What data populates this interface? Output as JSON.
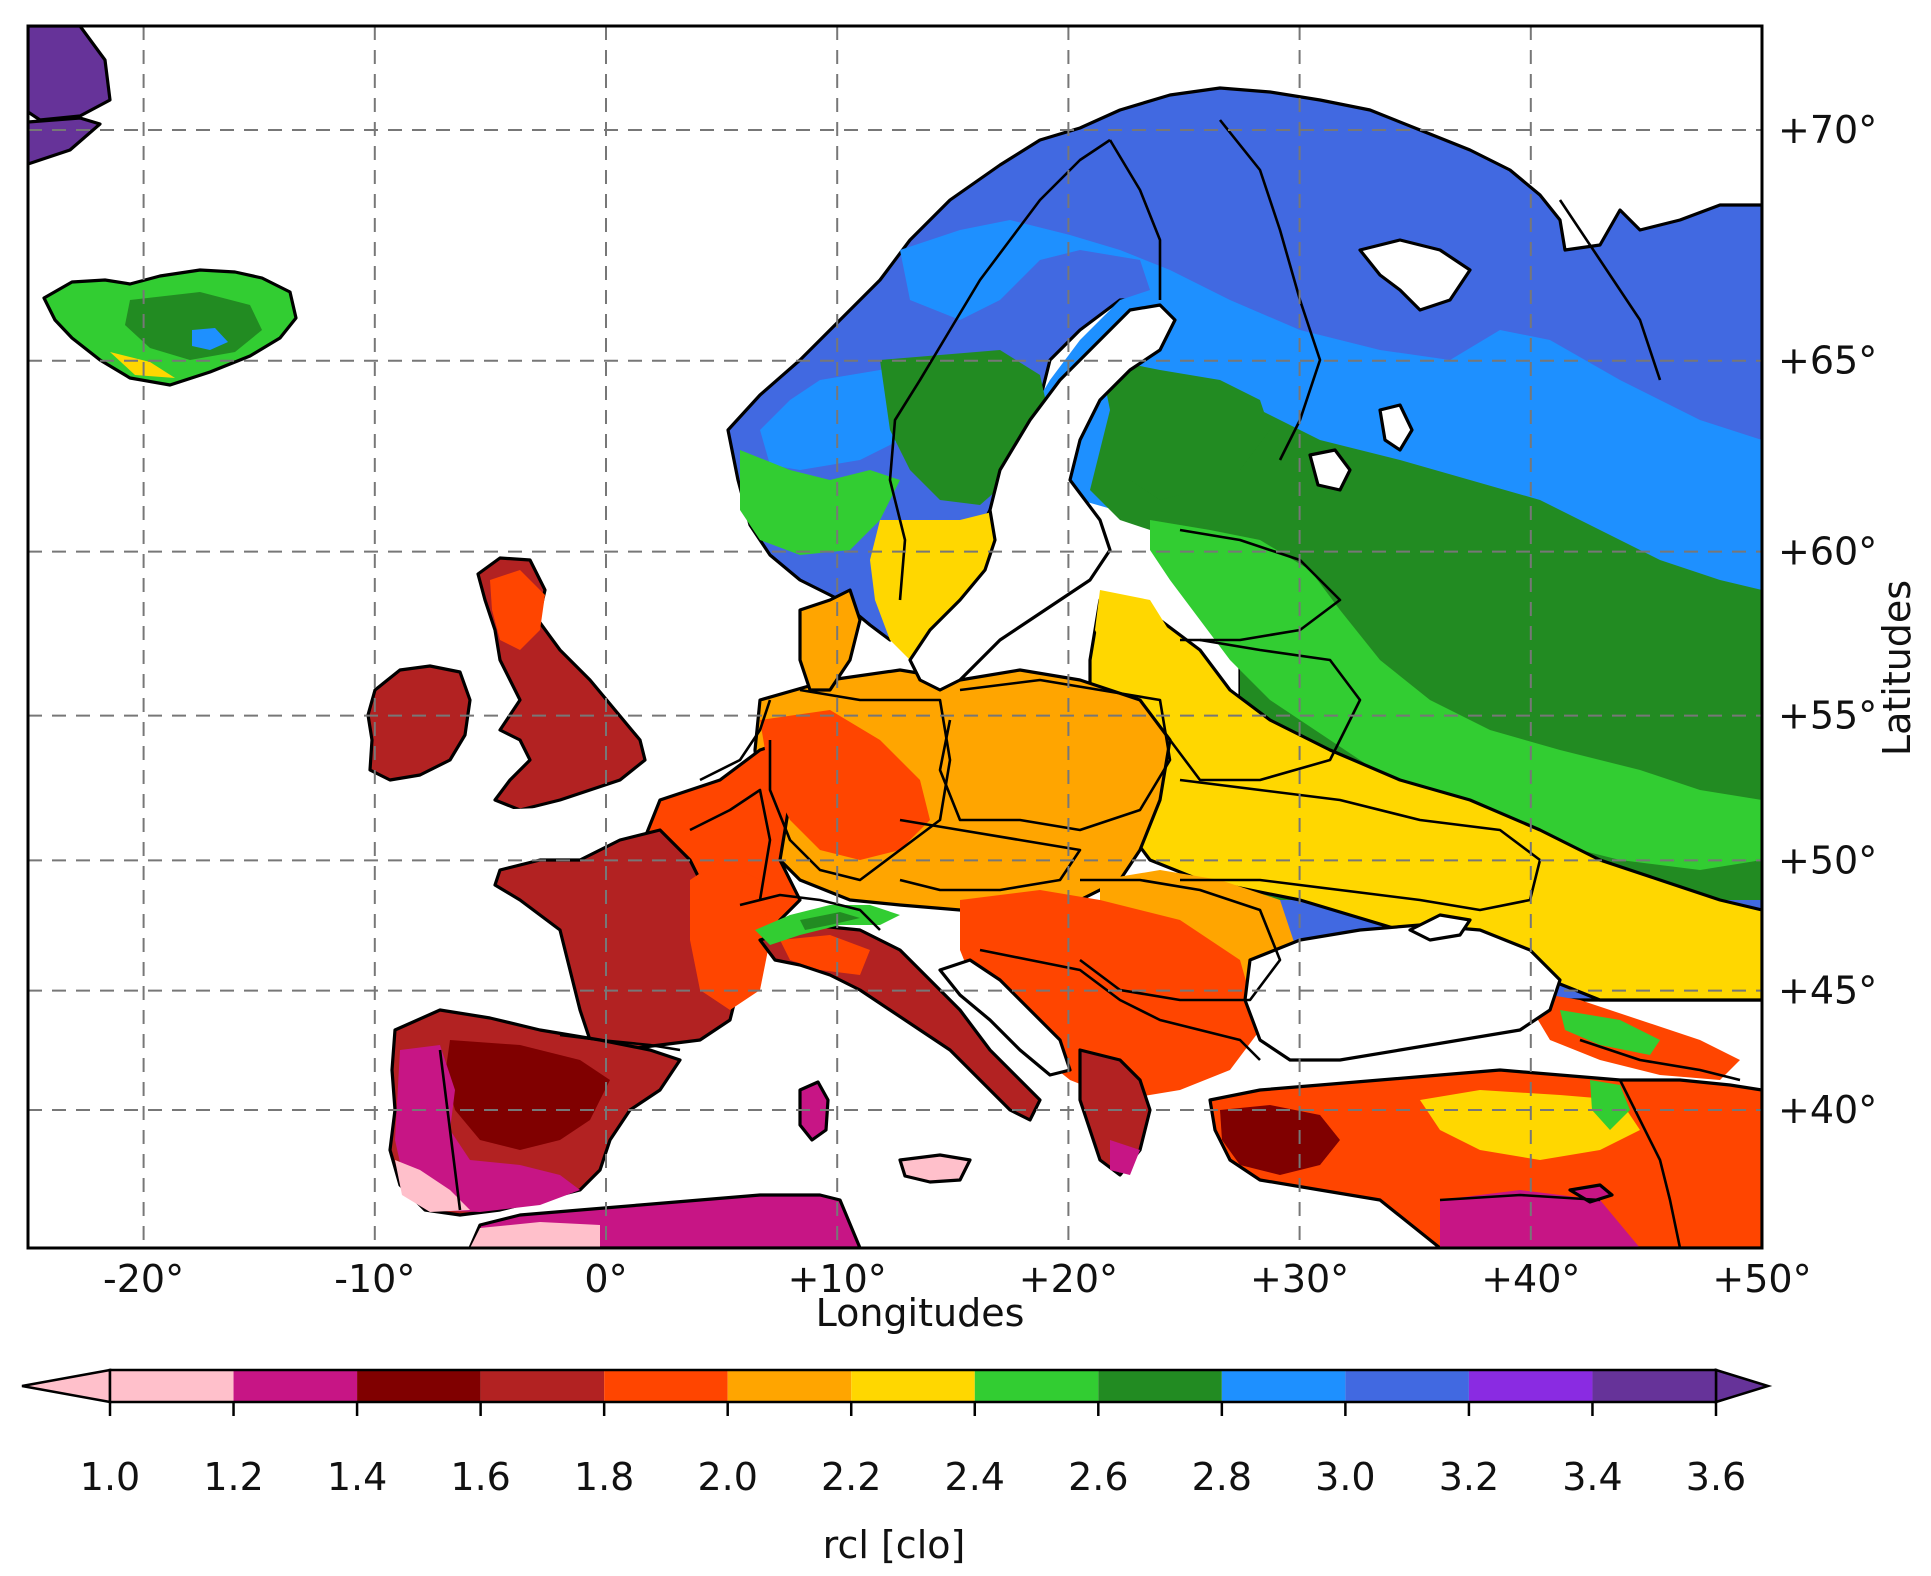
{
  "map": {
    "x_axis": {
      "label": "Longitudes",
      "ticks": [
        "-20°",
        "-10°",
        "0°",
        "+10°",
        "+20°",
        "+30°",
        "+40°",
        "+50°"
      ],
      "range": [
        -25,
        50
      ]
    },
    "y_axis": {
      "label": "Latitudes",
      "ticks": [
        "+40°",
        "+45°",
        "+50°",
        "+55°",
        "+60°",
        "+65°",
        "+70°"
      ],
      "range": [
        35,
        72
      ],
      "position": "right"
    },
    "grid": true,
    "colorbar": {
      "label": "rcl [clo]",
      "ticks": [
        "1.0",
        "1.2",
        "1.4",
        "1.6",
        "1.8",
        "2.0",
        "2.2",
        "2.4",
        "2.6",
        "2.8",
        "3.0",
        "3.2",
        "3.4",
        "3.6"
      ],
      "bins": [
        {
          "from": 1.0,
          "to": 1.2,
          "color": "#ffc0cb"
        },
        {
          "from": 1.2,
          "to": 1.4,
          "color": "#c71585"
        },
        {
          "from": 1.4,
          "to": 1.6,
          "color": "#800000"
        },
        {
          "from": 1.6,
          "to": 1.8,
          "color": "#b22222"
        },
        {
          "from": 1.8,
          "to": 2.0,
          "color": "#ff4500"
        },
        {
          "from": 2.0,
          "to": 2.2,
          "color": "#ffa500"
        },
        {
          "from": 2.2,
          "to": 2.4,
          "color": "#ffd700"
        },
        {
          "from": 2.4,
          "to": 2.6,
          "color": "#32cd32"
        },
        {
          "from": 2.6,
          "to": 2.8,
          "color": "#228b22"
        },
        {
          "from": 2.8,
          "to": 3.0,
          "color": "#1e90ff"
        },
        {
          "from": 3.0,
          "to": 3.2,
          "color": "#4169e1"
        },
        {
          "from": 3.2,
          "to": 3.4,
          "color": "#8a2be2"
        },
        {
          "from": 3.4,
          "to": 3.6,
          "color": "#663399"
        }
      ],
      "extend": "both"
    }
  }
}
